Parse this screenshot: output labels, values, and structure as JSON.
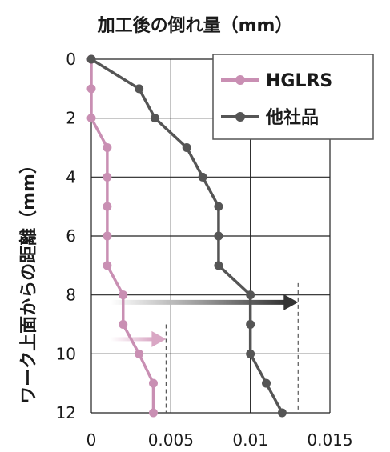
{
  "chart_data": {
    "type": "line",
    "title": "加工後の倒れ量（mm）",
    "xlabel": "",
    "ylabel": "ワーク上面からの距離（mm）",
    "xlim": [
      0,
      0.015
    ],
    "ylim": [
      12,
      0
    ],
    "x_ticks": [
      "0",
      "0.005",
      "0.01",
      "0.015"
    ],
    "y_ticks": [
      "0",
      "2",
      "4",
      "6",
      "8",
      "10",
      "12"
    ],
    "y_inverted": true,
    "grid": true,
    "legend_position": "top-right",
    "series": [
      {
        "name": "HGLRS",
        "color": "#c98fb3",
        "points": [
          {
            "x": 0,
            "y": 0
          },
          {
            "x": 0,
            "y": 1
          },
          {
            "x": 0,
            "y": 2
          },
          {
            "x": 0.001,
            "y": 3
          },
          {
            "x": 0.001,
            "y": 4
          },
          {
            "x": 0.001,
            "y": 5
          },
          {
            "x": 0.001,
            "y": 6
          },
          {
            "x": 0.001,
            "y": 7
          },
          {
            "x": 0.002,
            "y": 8
          },
          {
            "x": 0.002,
            "y": 9
          },
          {
            "x": 0.003,
            "y": 10
          },
          {
            "x": 0.0039,
            "y": 11
          },
          {
            "x": 0.0039,
            "y": 12
          }
        ]
      },
      {
        "name": "他社品",
        "color": "#555555",
        "points": [
          {
            "x": 0,
            "y": 0
          },
          {
            "x": 0.003,
            "y": 1
          },
          {
            "x": 0.004,
            "y": 2
          },
          {
            "x": 0.006,
            "y": 3
          },
          {
            "x": 0.007,
            "y": 4
          },
          {
            "x": 0.008,
            "y": 5
          },
          {
            "x": 0.008,
            "y": 6
          },
          {
            "x": 0.008,
            "y": 7
          },
          {
            "x": 0.01,
            "y": 8
          },
          {
            "x": 0.01,
            "y": 9
          },
          {
            "x": 0.01,
            "y": 10
          },
          {
            "x": 0.011,
            "y": 11
          },
          {
            "x": 0.012,
            "y": 12
          }
        ]
      }
    ],
    "annotations": [
      {
        "kind": "gradient-arrow",
        "color": "#333333",
        "y": 8.25,
        "x_end": 0.013,
        "x_start": 0.0012
      },
      {
        "kind": "gradient-arrow",
        "color": "#d9a7c4",
        "y": 9.5,
        "x_end": 0.0047,
        "x_start": 0.0012
      },
      {
        "kind": "dashed-line",
        "color": "#555555",
        "x": 0.013,
        "y_from": 7.6,
        "y_to": 12
      },
      {
        "kind": "dashed-line",
        "color": "#555555",
        "x": 0.0047,
        "y_from": 9.0,
        "y_to": 12
      }
    ]
  }
}
